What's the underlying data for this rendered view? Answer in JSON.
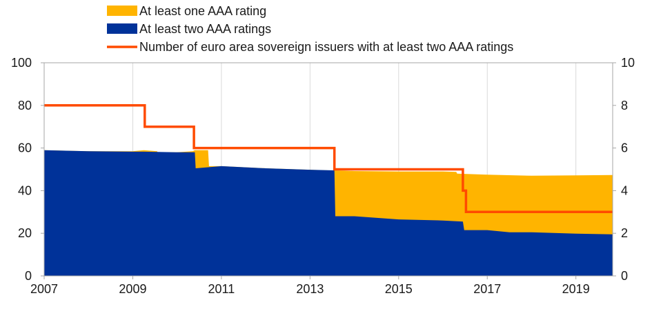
{
  "chart_data": {
    "type": "area",
    "x_label_ticks": [
      "2007",
      "2009",
      "2011",
      "2013",
      "2015",
      "2017",
      "2019"
    ],
    "xlim": [
      2007,
      2019.83
    ],
    "ylim_left": [
      0,
      100
    ],
    "ylim_right": [
      0,
      10
    ],
    "yticks_left": [
      "0",
      "20",
      "40",
      "60",
      "80",
      "100"
    ],
    "yticks_right": [
      "0",
      "2",
      "4",
      "6",
      "8",
      "10"
    ],
    "grid": "vertical",
    "legend_position": "top",
    "colors": {
      "one_aaa": "#FFB400",
      "two_aaa": "#003299",
      "issuers_line": "#FF4B00"
    },
    "series": [
      {
        "name": "At least one AAA rating",
        "kind": "area",
        "axis": "left",
        "points": [
          [
            2007.0,
            59
          ],
          [
            2008.0,
            58.5
          ],
          [
            2009.0,
            58.5
          ],
          [
            2009.25,
            59
          ],
          [
            2009.55,
            58.5
          ],
          [
            2009.56,
            58
          ],
          [
            2010.0,
            58
          ],
          [
            2010.35,
            58.5
          ],
          [
            2010.4,
            59
          ],
          [
            2010.7,
            59
          ],
          [
            2010.72,
            51.5
          ],
          [
            2011.0,
            51.5
          ],
          [
            2012.0,
            50.5
          ],
          [
            2013.0,
            49.8
          ],
          [
            2013.4,
            49.5
          ],
          [
            2013.55,
            49.5
          ],
          [
            2014.0,
            49.2
          ],
          [
            2015.0,
            49
          ],
          [
            2016.0,
            49
          ],
          [
            2016.3,
            48.8
          ],
          [
            2016.32,
            48
          ],
          [
            2017.0,
            47.5
          ],
          [
            2018.0,
            47
          ],
          [
            2019.0,
            47.2
          ],
          [
            2019.83,
            47.3
          ]
        ]
      },
      {
        "name": "At least two AAA ratings",
        "kind": "area",
        "axis": "left",
        "points": [
          [
            2007.0,
            59
          ],
          [
            2008.0,
            58.5
          ],
          [
            2009.0,
            58.3
          ],
          [
            2009.25,
            58.3
          ],
          [
            2009.55,
            58.2
          ],
          [
            2010.0,
            58
          ],
          [
            2010.4,
            58
          ],
          [
            2010.42,
            50.5
          ],
          [
            2011.0,
            51.5
          ],
          [
            2012.0,
            50.5
          ],
          [
            2013.0,
            49.8
          ],
          [
            2013.55,
            49.5
          ],
          [
            2013.57,
            28
          ],
          [
            2014.0,
            28
          ],
          [
            2015.0,
            26.5
          ],
          [
            2016.0,
            26
          ],
          [
            2016.45,
            25.5
          ],
          [
            2016.48,
            21.5
          ],
          [
            2017.0,
            21.5
          ],
          [
            2017.5,
            20.5
          ],
          [
            2018.0,
            20.5
          ],
          [
            2019.0,
            19.8
          ],
          [
            2019.83,
            19.5
          ]
        ]
      },
      {
        "name": "Number of euro area sovereign issuers with at least two AAA ratings",
        "kind": "step-line",
        "axis": "right",
        "points": [
          [
            2007.0,
            8
          ],
          [
            2009.27,
            8
          ],
          [
            2009.27,
            7
          ],
          [
            2010.38,
            7
          ],
          [
            2010.38,
            6
          ],
          [
            2013.55,
            6
          ],
          [
            2013.55,
            5
          ],
          [
            2016.45,
            5
          ],
          [
            2016.45,
            4
          ],
          [
            2016.52,
            4
          ],
          [
            2016.52,
            3
          ],
          [
            2019.83,
            3
          ]
        ]
      }
    ]
  }
}
